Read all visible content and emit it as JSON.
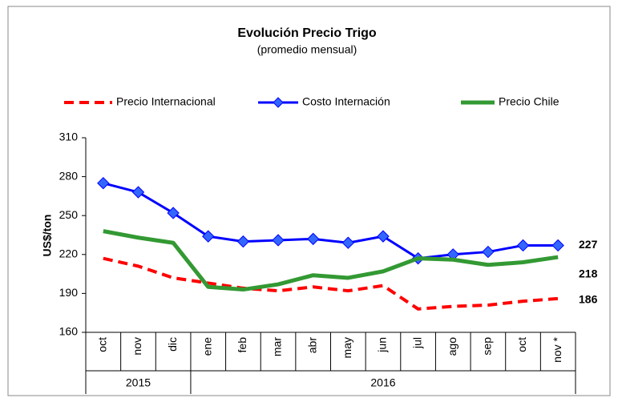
{
  "chart_data": {
    "type": "line",
    "title": "Evolución Precio Trigo",
    "subtitle": "(promedio mensual)",
    "y_label": "US$/ton",
    "categories": [
      "oct",
      "nov",
      "dic",
      "ene",
      "feb",
      "mar",
      "abr",
      "may",
      "jun",
      "jul",
      "ago",
      "sep",
      "oct",
      "nov *"
    ],
    "year_groups": [
      {
        "label": "2015",
        "count": 3
      },
      {
        "label": "2016",
        "count": 11
      }
    ],
    "ylim": [
      160,
      310
    ],
    "yticks": [
      160,
      190,
      220,
      250,
      280,
      310
    ],
    "grid": false,
    "legend": "top",
    "series": [
      {
        "name": "Precio Internacional",
        "color": "#ff0000",
        "style": "dashed",
        "values": [
          217,
          211,
          202,
          198,
          194,
          192,
          195,
          192,
          196,
          178,
          180,
          181,
          184,
          186
        ]
      },
      {
        "name": "Costo Internación",
        "color": "#0000ff",
        "style": "solid",
        "marker": "diamond",
        "values": [
          275,
          268,
          252,
          234,
          230,
          231,
          232,
          229,
          234,
          217,
          220,
          222,
          227,
          227
        ]
      },
      {
        "name": "Precio Chile",
        "color": "#339933",
        "style": "solid",
        "values": [
          238,
          233,
          229,
          195,
          193,
          197,
          204,
          202,
          207,
          217,
          216,
          212,
          214,
          218
        ]
      }
    ]
  }
}
